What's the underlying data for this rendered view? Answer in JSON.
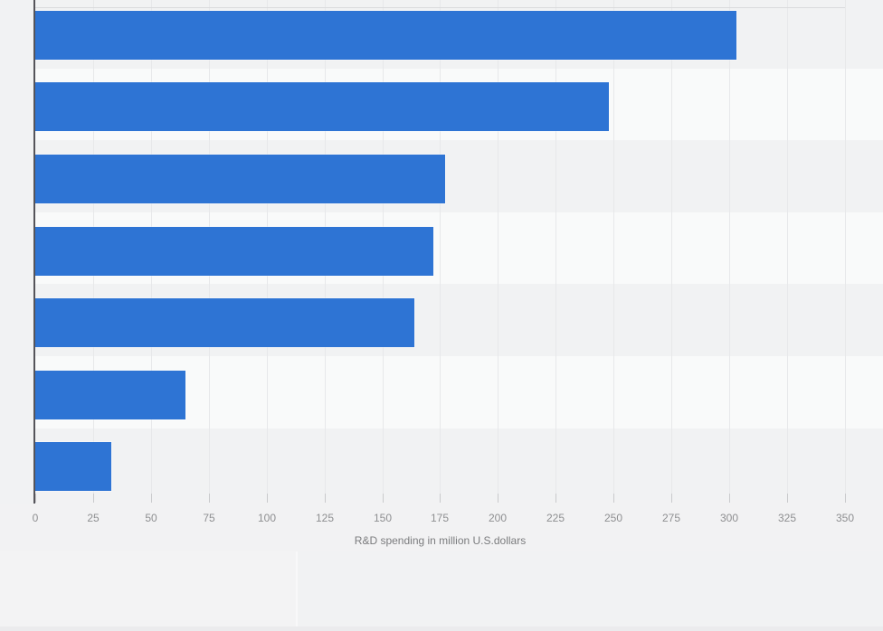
{
  "chart_data": {
    "type": "bar",
    "orientation": "horizontal",
    "title": "",
    "categories": [
      "",
      "",
      "",
      "",
      "",
      "",
      ""
    ],
    "values": [
      303,
      248,
      177,
      172,
      164,
      65,
      33
    ],
    "xlabel": "R&D spending in million U.S.dollars",
    "ylabel": "",
    "xlim": [
      0,
      350
    ],
    "xticks": [
      0,
      25,
      50,
      75,
      100,
      125,
      150,
      175,
      200,
      225,
      250,
      275,
      300,
      325,
      350
    ],
    "grid": true,
    "legend": false,
    "bar_color": "#2e74d4"
  },
  "colors": {
    "page_background": "#f2f2f3",
    "band_dark": "#f1f2f3",
    "band_light": "#f9fafa",
    "gridline": "#e7e8ea",
    "axis_line": "#55545a",
    "tick_label": "#8e8f91",
    "axis_title": "#7b7c7e",
    "bar": "#2e74d4"
  }
}
